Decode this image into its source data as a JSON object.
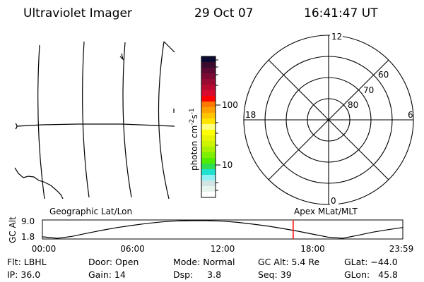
{
  "header": {
    "instrument": "Ultraviolet Imager",
    "date": "29 Oct 07",
    "time": "16:41:47 UT"
  },
  "colorbar": {
    "label": "photon cm",
    "exp1": "-2",
    "mid": "s",
    "exp2": "-1",
    "tick_labels": [
      "100",
      "10"
    ],
    "scale": "log",
    "colors": [
      "#0a0a32",
      "#3a0a2c",
      "#5c0a34",
      "#7a0a32",
      "#980a32",
      "#b80a30",
      "#d80a30",
      "#ff0000",
      "#ff7800",
      "#ffa000",
      "#ffc400",
      "#ffe400",
      "#ffff80",
      "#ffff00",
      "#e8f400",
      "#ccf400",
      "#a8f000",
      "#7cf000",
      "#50ec00",
      "#30dc50",
      "#20e0d0",
      "#90f0f4",
      "#d0e4e4",
      "#e8f4ee",
      "#ffffff"
    ]
  },
  "polar": {
    "mlt_labels": {
      "top": "12",
      "right": "6",
      "left": "18",
      "bottom": "0"
    },
    "lat_labels": [
      "60",
      "70",
      "80"
    ]
  },
  "chart_data": {
    "type": "line",
    "title_left": "Geographic Lat/Lon",
    "title_right": "Apex MLat/MLT",
    "ylabel": "GC Alt",
    "ytick_labels": [
      "9.0",
      "1.8"
    ],
    "ylim": [
      1.8,
      9.0
    ],
    "xtick_labels": [
      "00:00",
      "06:00",
      "12:00",
      "18:00",
      "23:59"
    ],
    "x_hours": [
      0,
      1,
      2,
      3,
      4,
      5,
      6,
      7,
      8,
      9,
      10,
      11,
      12,
      13,
      14,
      15,
      16,
      17,
      18,
      19,
      20,
      21,
      22,
      23,
      24
    ],
    "y": [
      2.4,
      1.8,
      2.6,
      3.9,
      5.1,
      6.2,
      7.1,
      7.9,
      8.5,
      8.9,
      9.0,
      9.0,
      8.8,
      8.3,
      7.6,
      6.8,
      5.8,
      4.7,
      3.5,
      2.3,
      1.8,
      3.0,
      4.3,
      5.3,
      6.2
    ],
    "current_time_hours": 16.7,
    "current_time_color": "#ff0000"
  },
  "info": {
    "row1": [
      "Flt: LBHL",
      "Door: Open",
      "Mode: Normal",
      "GC Alt: 5.4 Re",
      "GLat: −44.0"
    ],
    "row2": [
      "IP: 36.0",
      "Gain: 14",
      "Dsp:     3.8",
      "Seq: 39",
      "GLon:   45.8"
    ]
  }
}
